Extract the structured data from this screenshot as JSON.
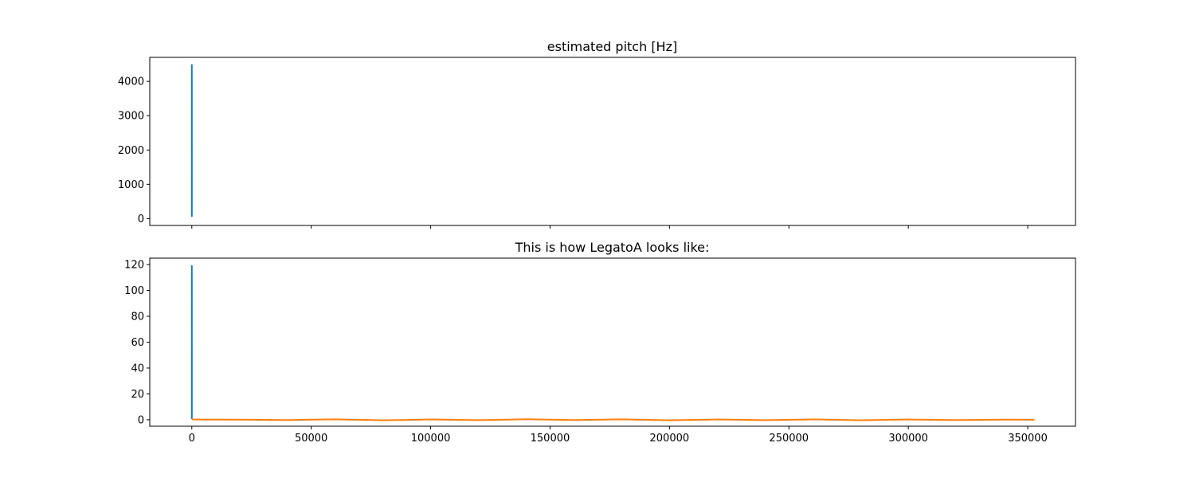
{
  "chart_data": [
    {
      "type": "line",
      "title": "estimated pitch [Hz]",
      "xlabel": "",
      "ylabel": "",
      "xlim": [
        -17600,
        370000
      ],
      "ylim": [
        -200,
        4700
      ],
      "xticks": [
        0,
        50000,
        100000,
        150000,
        200000,
        250000,
        300000,
        350000
      ],
      "xtick_labels_shown": false,
      "yticks": [
        0,
        1000,
        2000,
        3000,
        4000
      ],
      "ytick_labels": [
        "0",
        "1000",
        "2000",
        "3000",
        "4000"
      ],
      "grid": false,
      "series": [
        {
          "color": "#1f77b4",
          "x": [
            0,
            1,
            2,
            3,
            4,
            5,
            6,
            7,
            8,
            9,
            10,
            12,
            14,
            16,
            18,
            20
          ],
          "y": [
            60,
            4480,
            120,
            3900,
            200,
            2600,
            80,
            4300,
            150,
            1800,
            90,
            3500,
            70,
            4100,
            110,
            2200
          ]
        }
      ]
    },
    {
      "type": "line",
      "title": "This is how LegatoA looks like:",
      "xlabel": "",
      "ylabel": "",
      "xlim": [
        -17600,
        370000
      ],
      "ylim": [
        -5,
        125
      ],
      "xticks": [
        0,
        50000,
        100000,
        150000,
        200000,
        250000,
        300000,
        350000
      ],
      "xtick_labels": [
        "0",
        "50000",
        "100000",
        "150000",
        "200000",
        "250000",
        "300000",
        "350000"
      ],
      "yticks": [
        0,
        20,
        40,
        60,
        80,
        100,
        120
      ],
      "ytick_labels": [
        "0",
        "20",
        "40",
        "60",
        "80",
        "100",
        "120"
      ],
      "grid": false,
      "series": [
        {
          "color": "#1f77b4",
          "x": [
            0,
            1,
            2,
            3,
            4,
            5,
            6,
            7,
            8,
            9,
            10,
            12,
            14,
            16,
            18,
            20
          ],
          "y": [
            1,
            119,
            3,
            100,
            5,
            70,
            2,
            115,
            4,
            50,
            2,
            95,
            1,
            110,
            3,
            60
          ]
        },
        {
          "color": "#ff7f0e",
          "x": [
            0,
            20000,
            40000,
            60000,
            80000,
            100000,
            120000,
            140000,
            160000,
            180000,
            200000,
            220000,
            240000,
            260000,
            280000,
            300000,
            320000,
            340000,
            352800
          ],
          "y": [
            0.2,
            0.1,
            -0.2,
            0.3,
            -0.4,
            0.2,
            -0.3,
            0.4,
            -0.2,
            0.3,
            -0.4,
            0.2,
            -0.3,
            0.3,
            -0.4,
            0.2,
            -0.2,
            0.1,
            0
          ]
        }
      ]
    }
  ]
}
